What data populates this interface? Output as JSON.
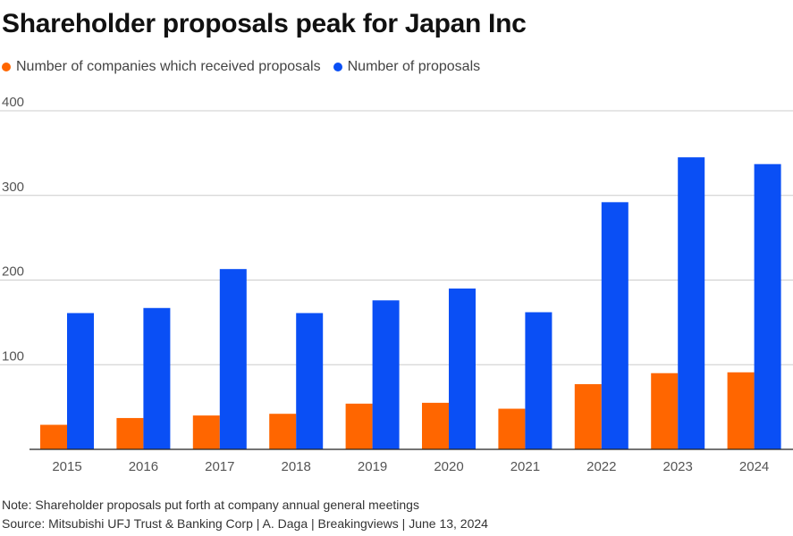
{
  "title": "Shareholder proposals peak for Japan Inc",
  "legend": {
    "series1": "Number of companies which received proposals",
    "series2": "Number of proposals"
  },
  "colors": {
    "series1": "#ff6600",
    "series2": "#0a4ff5",
    "grid": "#cccccc",
    "axis": "#222222"
  },
  "chart_data": {
    "type": "bar",
    "categories": [
      "2015",
      "2016",
      "2017",
      "2018",
      "2019",
      "2020",
      "2021",
      "2022",
      "2023",
      "2024"
    ],
    "series": [
      {
        "name": "Number of companies which received proposals",
        "values": [
          29,
          37,
          40,
          42,
          54,
          55,
          48,
          77,
          90,
          91
        ]
      },
      {
        "name": "Number of proposals",
        "values": [
          161,
          167,
          213,
          161,
          176,
          190,
          162,
          292,
          345,
          337
        ]
      }
    ],
    "yticks": [
      100,
      200,
      300,
      400
    ],
    "ylim": [
      0,
      400
    ],
    "grid": true,
    "legend_position": "top-left"
  },
  "note": "Note: Shareholder proposals put forth at company annual general meetings",
  "source": "Source: Mitsubishi UFJ Trust & Banking Corp | A. Daga | Breakingviews | June 13, 2024"
}
